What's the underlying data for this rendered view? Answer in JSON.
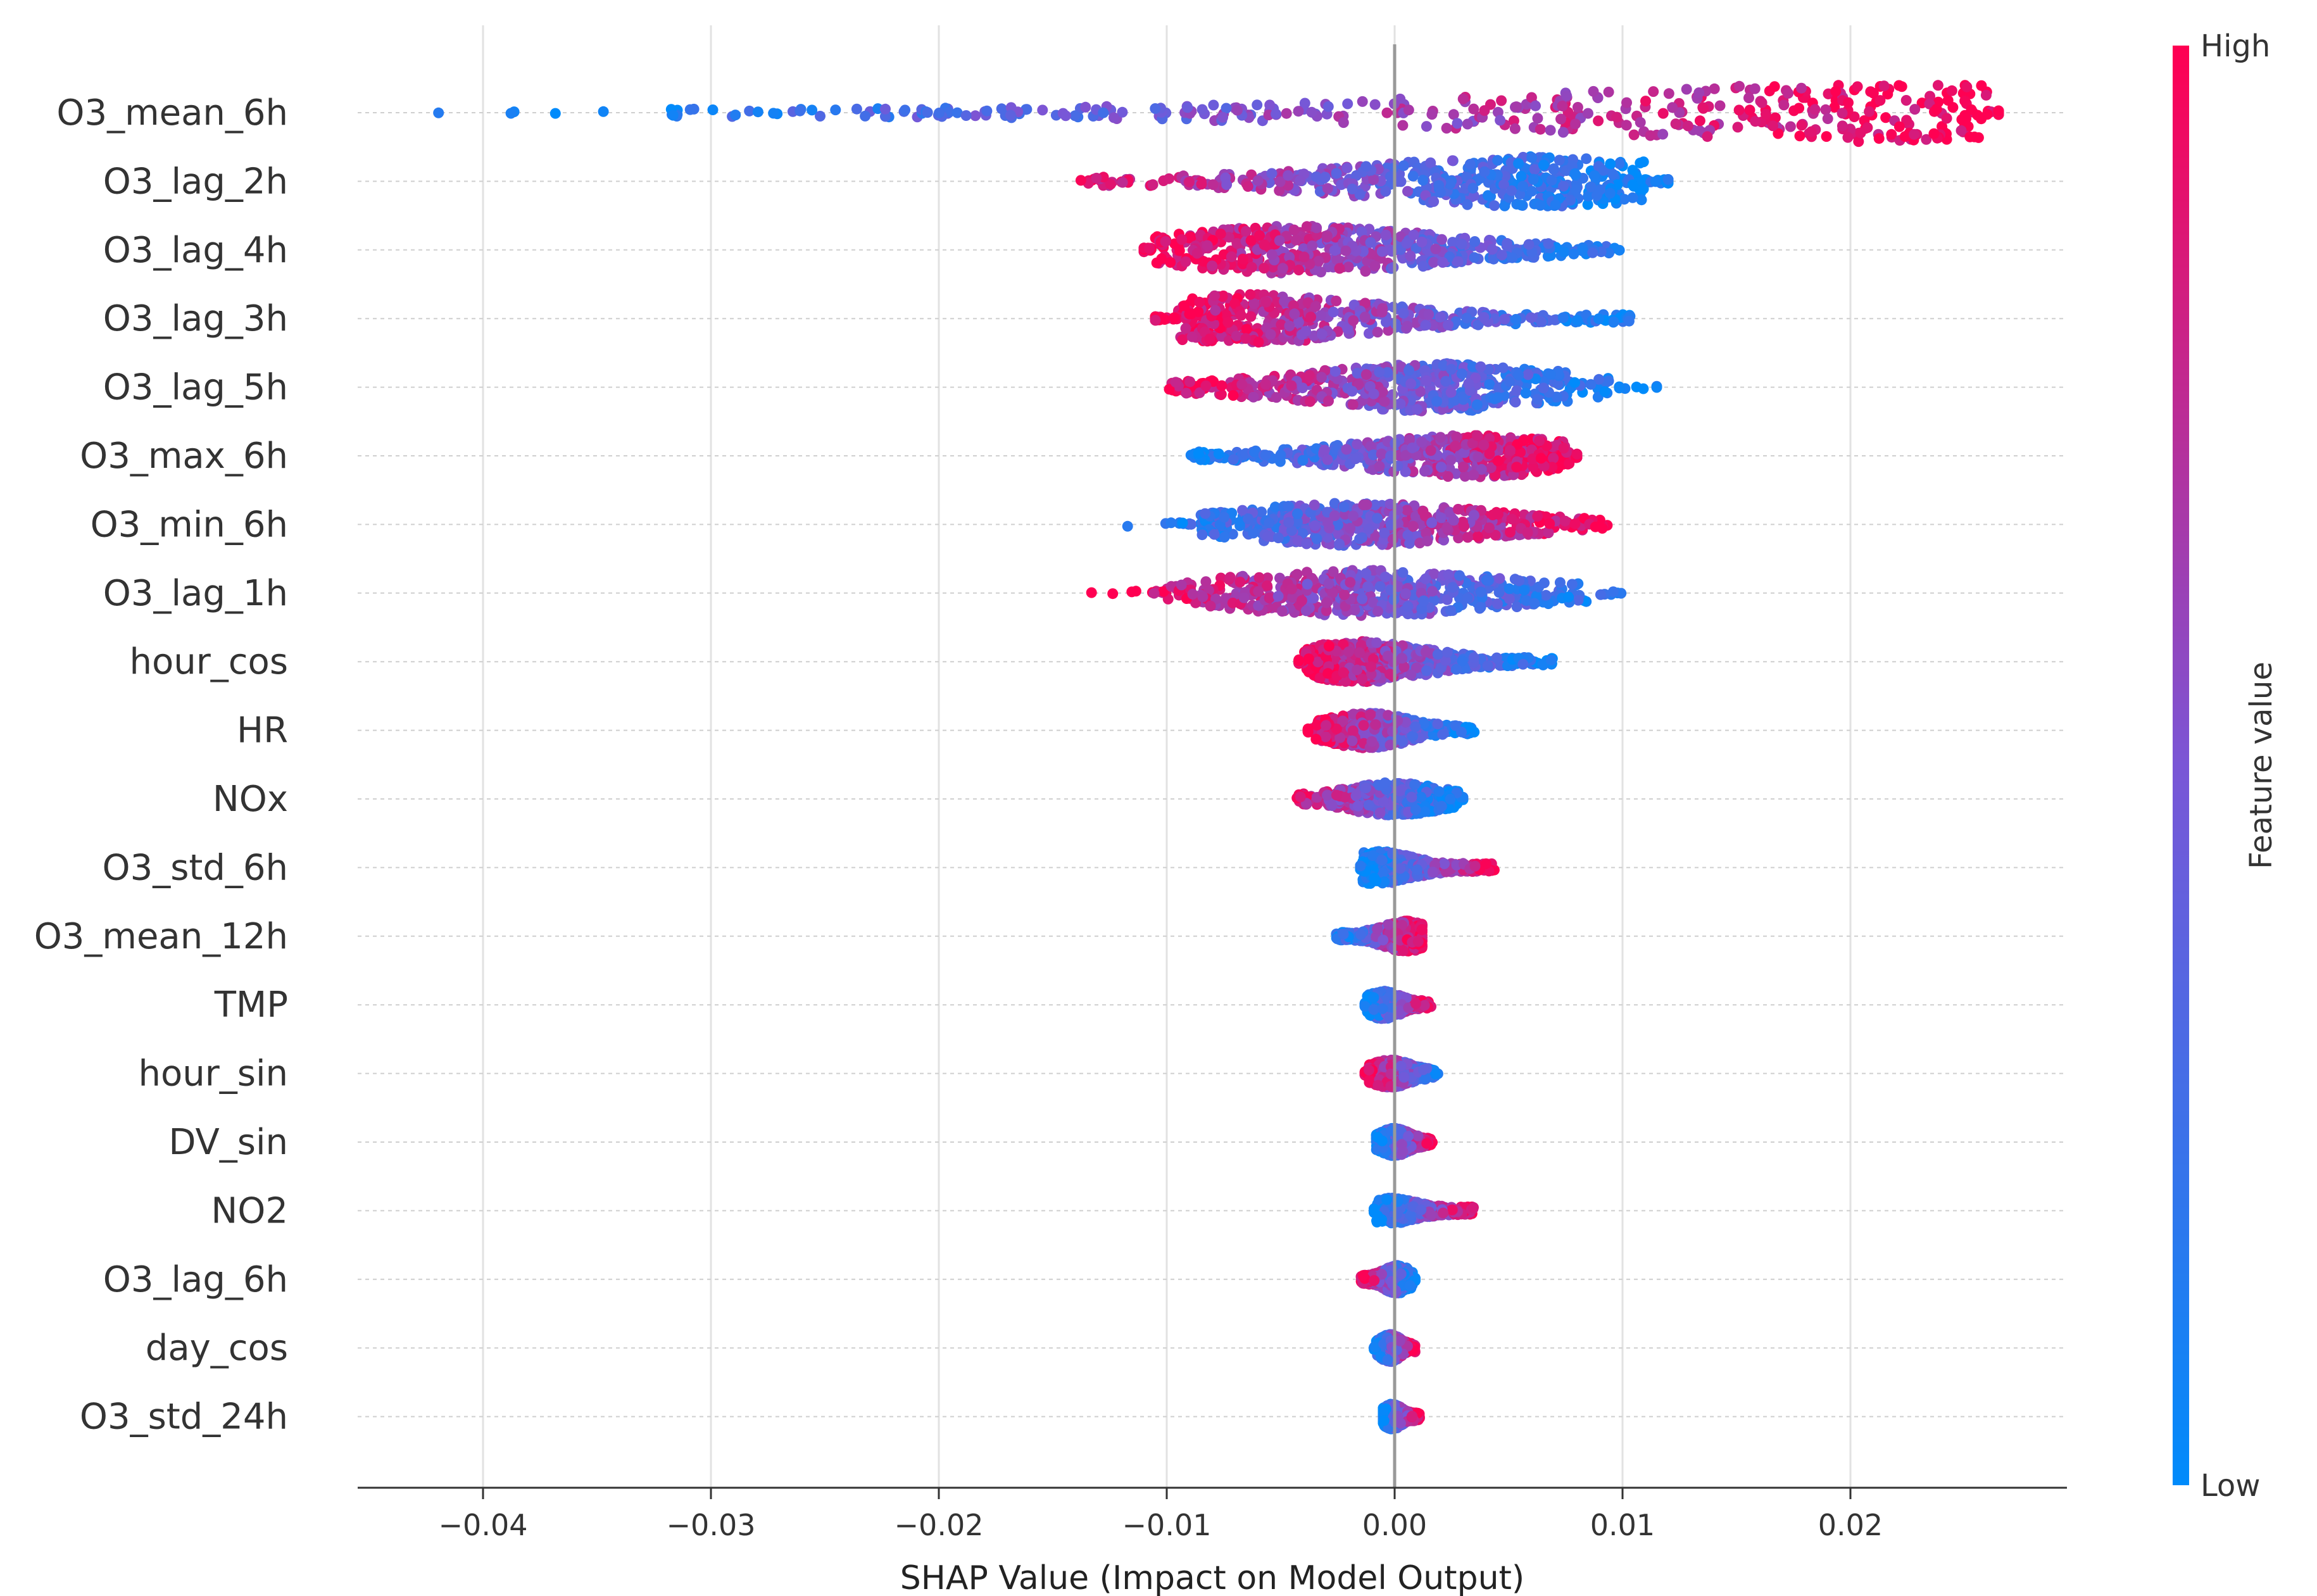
{
  "chart_data": {
    "type": "scatter",
    "subtype": "shap-beeswarm",
    "title": "",
    "xlabel": "SHAP Value (Impact on Model Output)",
    "xlim": [
      -0.0455,
      0.0295
    ],
    "x_ticks": [
      -0.04,
      -0.03,
      -0.02,
      -0.01,
      0.0,
      0.01,
      0.02
    ],
    "x_tick_labels": [
      "−0.04",
      "−0.03",
      "−0.02",
      "−0.01",
      "0.00",
      "0.01",
      "0.02"
    ],
    "grid": "vertical",
    "colorbar": {
      "label": "Feature value",
      "high_label": "High",
      "low_label": "Low",
      "low_color": "#008bfb",
      "high_color": "#ff0052"
    },
    "features": [
      {
        "name": "O3_mean_6h",
        "min": -0.042,
        "max": 0.0265,
        "dense": [
          -0.032,
          0.026
        ],
        "peak": 0.0225,
        "corr": 1,
        "spread": 1.0
      },
      {
        "name": "O3_lag_2h",
        "min": -0.017,
        "max": 0.012,
        "dense": [
          -0.0135,
          0.011
        ],
        "peak": 0.0058,
        "corr": -1,
        "spread": 0.85
      },
      {
        "name": "O3_lag_4h",
        "min": -0.011,
        "max": 0.012,
        "dense": [
          -0.0105,
          0.0095
        ],
        "peak": -0.004,
        "corr": -1,
        "spread": 0.8
      },
      {
        "name": "O3_lag_3h",
        "min": -0.0105,
        "max": 0.0115,
        "dense": [
          -0.0095,
          0.0105
        ],
        "peak": -0.0065,
        "corr": -1,
        "spread": 0.8
      },
      {
        "name": "O3_lag_5h",
        "min": -0.011,
        "max": 0.0115,
        "dense": [
          -0.01,
          0.0095
        ],
        "peak": 0.0018,
        "corr": -1,
        "spread": 0.8
      },
      {
        "name": "O3_max_6h",
        "min": -0.0095,
        "max": 0.008,
        "dense": [
          -0.009,
          0.0078
        ],
        "peak": 0.0032,
        "corr": 1,
        "spread": 0.7
      },
      {
        "name": "O3_min_6h",
        "min": -0.0125,
        "max": 0.0095,
        "dense": [
          -0.0085,
          0.0092
        ],
        "peak": -0.0015,
        "corr": 1,
        "spread": 0.7
      },
      {
        "name": "O3_lag_1h",
        "min": -0.0133,
        "max": 0.0125,
        "dense": [
          -0.01,
          0.0085
        ],
        "peak": -0.0015,
        "corr": -1,
        "spread": 0.75
      },
      {
        "name": "hour_cos",
        "min": -0.0042,
        "max": 0.0072,
        "dense": [
          -0.004,
          0.007
        ],
        "peak": -0.0015,
        "corr": -1,
        "spread": 0.65
      },
      {
        "name": "HR",
        "min": -0.0038,
        "max": 0.0035,
        "dense": [
          -0.0035,
          0.0034
        ],
        "peak": -0.0012,
        "corr": -1,
        "spread": 0.55
      },
      {
        "name": "NOx",
        "min": -0.0052,
        "max": 0.003,
        "dense": [
          -0.0042,
          0.0028
        ],
        "peak": 0.0,
        "corr": -1,
        "spread": 0.5
      },
      {
        "name": "O3_std_6h",
        "min": -0.0015,
        "max": 0.0045,
        "dense": [
          -0.0014,
          0.0044
        ],
        "peak": -0.0008,
        "corr": 1,
        "spread": 0.5
      },
      {
        "name": "O3_mean_12h",
        "min": -0.0028,
        "max": 0.0012,
        "dense": [
          -0.0026,
          0.0012
        ],
        "peak": 0.0005,
        "corr": 1,
        "spread": 0.45
      },
      {
        "name": "TMP",
        "min": -0.0013,
        "max": 0.0016,
        "dense": [
          -0.0012,
          0.0015
        ],
        "peak": -0.0005,
        "corr": 1,
        "spread": 0.4
      },
      {
        "name": "hour_sin",
        "min": -0.0013,
        "max": 0.0023,
        "dense": [
          -0.0012,
          0.0018
        ],
        "peak": -0.0002,
        "corr": -1,
        "spread": 0.4
      },
      {
        "name": "DV_sin",
        "min": -0.0008,
        "max": 0.0017,
        "dense": [
          -0.0008,
          0.0016
        ],
        "peak": 0.0,
        "corr": 1,
        "spread": 0.4
      },
      {
        "name": "NO2",
        "min": -0.0009,
        "max": 0.0036,
        "dense": [
          -0.0008,
          0.0035
        ],
        "peak": -0.0002,
        "corr": 1,
        "spread": 0.35
      },
      {
        "name": "O3_lag_6h",
        "min": -0.0015,
        "max": 0.0009,
        "dense": [
          -0.0015,
          0.0008
        ],
        "peak": 0.0001,
        "corr": -1,
        "spread": 0.4
      },
      {
        "name": "day_cos",
        "min": -0.0009,
        "max": 0.0009,
        "dense": [
          -0.0008,
          0.0009
        ],
        "peak": -0.0002,
        "corr": 1,
        "spread": 0.4
      },
      {
        "name": "O3_std_24h",
        "min": -0.0005,
        "max": 0.0011,
        "dense": [
          -0.0005,
          0.0011
        ],
        "peak": -0.0001,
        "corr": 1,
        "spread": 0.35
      }
    ]
  }
}
